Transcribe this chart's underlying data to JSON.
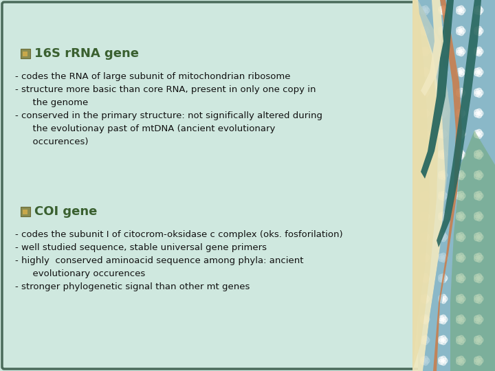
{
  "bg_color": "#cfe8df",
  "border_color": "#4a6a5a",
  "title1": "16S rRNA gene",
  "title2": "COI gene",
  "title_color": "#3a6030",
  "text_color": "#111111",
  "title_fontsize": 13,
  "text_fontsize": 9.5,
  "section1_text": "- codes the RNA of large subunit of mitochondrian ribosome\n- structure more basic than core RNA, present in only one copy in\n      the genome\n- conserved in the primary structure: not significally altered during\n      the evolutionay past of mtDNA (ancient evolutionary\n      occurences)",
  "section2_text": "- codes the subunit I of citocrom-oksidase c complex (oks. fosforilation)\n- well studied sequence, stable universal gene primers\n- highly  conserved aminoacid sequence among phyla: ancient\n      evolutionary occurences\n- stronger phylogenetic signal than other mt genes"
}
